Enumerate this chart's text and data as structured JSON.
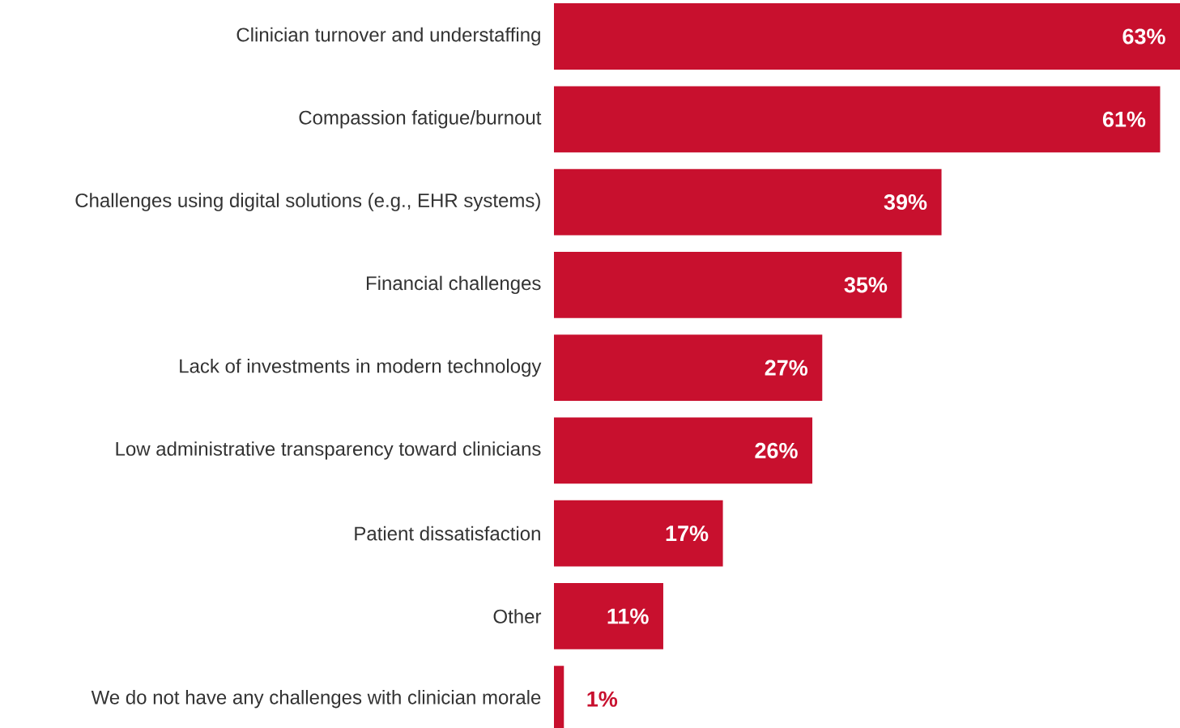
{
  "chart_data": {
    "type": "bar",
    "orientation": "horizontal",
    "color": "#c8102e",
    "categories": [
      "Clinician turnover and understaffing",
      "Compassion fatigue/burnout",
      "Challenges using digital solutions (e.g., EHR systems)",
      "Financial challenges",
      "Lack of investments in modern technology",
      "Low administrative transparency toward clinicians",
      "Patient dissatisfaction",
      "Other",
      "We do not have any challenges with clinician morale"
    ],
    "values": [
      63,
      61,
      39,
      35,
      27,
      26,
      17,
      11,
      1
    ],
    "value_labels": [
      "63%",
      "61%",
      "39%",
      "35%",
      "27%",
      "26%",
      "17%",
      "11%",
      "1%"
    ]
  }
}
